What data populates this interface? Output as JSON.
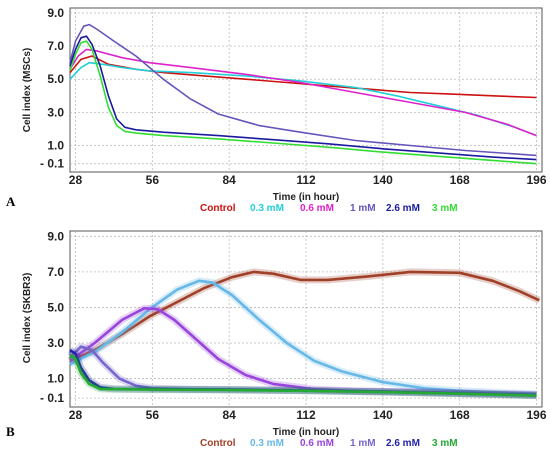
{
  "chart_data": [
    {
      "type": "line",
      "panel": "A",
      "xlabel": "Time (in hour)",
      "ylabel": "Cell index (MSCs)",
      "xlim": [
        26,
        198
      ],
      "ylim": [
        -0.6,
        9.3
      ],
      "xticks": [
        28,
        56,
        84,
        112,
        140,
        168,
        196
      ],
      "yticks": [
        -0.1,
        1.0,
        3.0,
        5.0,
        7.0,
        9.0
      ],
      "ytick_labels": [
        "- 0.1",
        "1.0",
        "3.0",
        "5.0",
        "7.0",
        "9.0"
      ],
      "grid": true,
      "legend_position": "bottom",
      "series": [
        {
          "name": "Control",
          "color": "#cc1111",
          "values": [
            [
              26,
              5.4
            ],
            [
              30,
              6.2
            ],
            [
              34,
              6.4
            ],
            [
              40,
              5.9
            ],
            [
              50,
              5.6
            ],
            [
              60,
              5.4
            ],
            [
              75,
              5.2
            ],
            [
              90,
              5.0
            ],
            [
              105,
              4.8
            ],
            [
              120,
              4.6
            ],
            [
              135,
              4.4
            ],
            [
              150,
              4.2
            ],
            [
              165,
              4.1
            ],
            [
              180,
              4.0
            ],
            [
              196,
              3.9
            ]
          ]
        },
        {
          "name": "0.3 mM",
          "color": "#22d0d8",
          "values": [
            [
              26,
              5.0
            ],
            [
              30,
              5.7
            ],
            [
              33,
              6.0
            ],
            [
              38,
              5.9
            ],
            [
              45,
              5.7
            ],
            [
              55,
              5.5
            ],
            [
              70,
              5.4
            ],
            [
              90,
              5.2
            ],
            [
              110,
              4.9
            ],
            [
              130,
              4.5
            ],
            [
              145,
              4.0
            ],
            [
              160,
              3.4
            ],
            [
              175,
              2.8
            ],
            [
              188,
              2.1
            ],
            [
              196,
              1.6
            ]
          ]
        },
        {
          "name": "0.6 mM",
          "color": "#dd22cc",
          "values": [
            [
              26,
              5.6
            ],
            [
              29,
              6.4
            ],
            [
              32,
              6.8
            ],
            [
              36,
              6.7
            ],
            [
              45,
              6.3
            ],
            [
              55,
              6.0
            ],
            [
              70,
              5.7
            ],
            [
              90,
              5.3
            ],
            [
              110,
              4.8
            ],
            [
              130,
              4.2
            ],
            [
              150,
              3.6
            ],
            [
              170,
              3.0
            ],
            [
              185,
              2.3
            ],
            [
              196,
              1.6
            ]
          ]
        },
        {
          "name": "1 mM",
          "color": "#6655bb",
          "values": [
            [
              26,
              6.0
            ],
            [
              28,
              7.3
            ],
            [
              31,
              8.2
            ],
            [
              33,
              8.3
            ],
            [
              36,
              8.0
            ],
            [
              42,
              7.3
            ],
            [
              50,
              6.4
            ],
            [
              60,
              5.0
            ],
            [
              70,
              3.8
            ],
            [
              80,
              2.9
            ],
            [
              95,
              2.2
            ],
            [
              110,
              1.8
            ],
            [
              130,
              1.3
            ],
            [
              150,
              1.0
            ],
            [
              170,
              0.7
            ],
            [
              196,
              0.4
            ]
          ]
        },
        {
          "name": "2.6 mM",
          "color": "#1a1aa0",
          "values": [
            [
              26,
              5.8
            ],
            [
              28,
              6.8
            ],
            [
              30,
              7.5
            ],
            [
              32,
              7.6
            ],
            [
              34,
              7.1
            ],
            [
              37,
              5.8
            ],
            [
              40,
              4.0
            ],
            [
              43,
              2.6
            ],
            [
              46,
              2.1
            ],
            [
              50,
              1.95
            ],
            [
              60,
              1.8
            ],
            [
              80,
              1.6
            ],
            [
              100,
              1.35
            ],
            [
              120,
              1.1
            ],
            [
              140,
              0.8
            ],
            [
              160,
              0.55
            ],
            [
              180,
              0.3
            ],
            [
              196,
              0.15
            ]
          ]
        },
        {
          "name": "3 mM",
          "color": "#33dd33",
          "values": [
            [
              26,
              5.5
            ],
            [
              28,
              6.5
            ],
            [
              30,
              7.2
            ],
            [
              32,
              7.3
            ],
            [
              34,
              6.8
            ],
            [
              37,
              5.2
            ],
            [
              40,
              3.3
            ],
            [
              43,
              2.2
            ],
            [
              46,
              1.85
            ],
            [
              50,
              1.75
            ],
            [
              60,
              1.6
            ],
            [
              80,
              1.4
            ],
            [
              100,
              1.15
            ],
            [
              120,
              0.9
            ],
            [
              140,
              0.6
            ],
            [
              160,
              0.35
            ],
            [
              180,
              0.1
            ],
            [
              196,
              -0.1
            ]
          ]
        }
      ]
    },
    {
      "type": "line",
      "panel": "B",
      "xlabel": "Time (in hour)",
      "ylabel": "Cell index (SKBR3)",
      "xlim": [
        26,
        198
      ],
      "ylim": [
        -0.6,
        9.3
      ],
      "xticks": [
        28,
        56,
        84,
        112,
        140,
        168,
        196
      ],
      "yticks": [
        -0.1,
        1.0,
        3.0,
        5.0,
        7.0,
        9.0
      ],
      "ytick_labels": [
        "- 0.1",
        "1.0",
        "3.0",
        "5.0",
        "7.0",
        "9.0"
      ],
      "grid": true,
      "legend_position": "bottom",
      "series": [
        {
          "name": "Control",
          "color": "#a04028",
          "values": [
            [
              26,
              2.0
            ],
            [
              35,
              2.6
            ],
            [
              45,
              3.5
            ],
            [
              55,
              4.5
            ],
            [
              65,
              5.3
            ],
            [
              75,
              6.1
            ],
            [
              85,
              6.7
            ],
            [
              93,
              7.0
            ],
            [
              100,
              6.9
            ],
            [
              110,
              6.55
            ],
            [
              120,
              6.55
            ],
            [
              135,
              6.75
            ],
            [
              150,
              7.0
            ],
            [
              168,
              6.95
            ],
            [
              180,
              6.5
            ],
            [
              190,
              5.9
            ],
            [
              197,
              5.4
            ]
          ]
        },
        {
          "name": "0.3 mM",
          "color": "#66b8e8",
          "values": [
            [
              26,
              1.8
            ],
            [
              35,
              2.5
            ],
            [
              45,
              3.6
            ],
            [
              55,
              4.9
            ],
            [
              65,
              6.0
            ],
            [
              73,
              6.5
            ],
            [
              78,
              6.4
            ],
            [
              85,
              5.7
            ],
            [
              95,
              4.3
            ],
            [
              105,
              3.0
            ],
            [
              115,
              2.0
            ],
            [
              125,
              1.4
            ],
            [
              140,
              0.8
            ],
            [
              155,
              0.45
            ],
            [
              170,
              0.3
            ],
            [
              185,
              0.2
            ],
            [
              196,
              0.15
            ]
          ]
        },
        {
          "name": "0.6 mM",
          "color": "#9944dd",
          "values": [
            [
              26,
              2.0
            ],
            [
              35,
              3.0
            ],
            [
              45,
              4.3
            ],
            [
              53,
              4.95
            ],
            [
              58,
              4.9
            ],
            [
              64,
              4.3
            ],
            [
              72,
              3.2
            ],
            [
              80,
              2.1
            ],
            [
              90,
              1.2
            ],
            [
              100,
              0.7
            ],
            [
              115,
              0.4
            ],
            [
              130,
              0.3
            ],
            [
              150,
              0.25
            ],
            [
              170,
              0.2
            ],
            [
              196,
              0.1
            ]
          ]
        },
        {
          "name": "1 mM",
          "color": "#7766cc",
          "values": [
            [
              26,
              2.2
            ],
            [
              30,
              2.8
            ],
            [
              34,
              2.6
            ],
            [
              38,
              1.9
            ],
            [
              44,
              1.0
            ],
            [
              50,
              0.6
            ],
            [
              56,
              0.45
            ],
            [
              70,
              0.4
            ],
            [
              90,
              0.38
            ],
            [
              120,
              0.32
            ],
            [
              150,
              0.25
            ],
            [
              175,
              0.15
            ],
            [
              196,
              0.08
            ]
          ]
        },
        {
          "name": "2.6 mM",
          "color": "#2222aa",
          "values": [
            [
              26,
              2.6
            ],
            [
              28,
              2.4
            ],
            [
              30,
              1.6
            ],
            [
              33,
              0.9
            ],
            [
              37,
              0.5
            ],
            [
              42,
              0.42
            ],
            [
              55,
              0.4
            ],
            [
              80,
              0.38
            ],
            [
              110,
              0.33
            ],
            [
              140,
              0.25
            ],
            [
              170,
              0.15
            ],
            [
              196,
              0.05
            ]
          ]
        },
        {
          "name": "3 mM",
          "color": "#22aa33",
          "values": [
            [
              26,
              2.3
            ],
            [
              28,
              2.1
            ],
            [
              30,
              1.3
            ],
            [
              33,
              0.7
            ],
            [
              37,
              0.42
            ],
            [
              42,
              0.4
            ],
            [
              55,
              0.38
            ],
            [
              80,
              0.36
            ],
            [
              110,
              0.31
            ],
            [
              140,
              0.24
            ],
            [
              170,
              0.14
            ],
            [
              196,
              0.04
            ]
          ]
        }
      ]
    }
  ]
}
